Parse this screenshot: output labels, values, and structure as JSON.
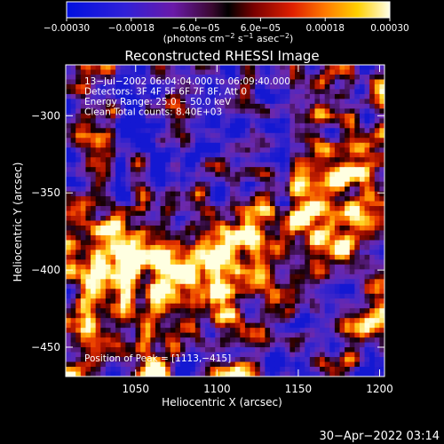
{
  "chart_data": {
    "type": "heatmap",
    "title": "Reconstructed RHESSI Image",
    "xlabel": "Heliocentric X (arcsec)",
    "ylabel": "Heliocentric Y (arcsec)",
    "xlim": [
      1007,
      1203
    ],
    "ylim": [
      -469,
      -267
    ],
    "x_ticks": [
      1050,
      1100,
      1150,
      1200
    ],
    "x_tick_labels": [
      "1050",
      "1100",
      "1150",
      "1200"
    ],
    "y_ticks": [
      -300,
      -350,
      -400,
      -450
    ],
    "y_tick_labels": [
      "−300",
      "−350",
      "−400",
      "−450"
    ],
    "colorbar": {
      "range": [
        -0.0003,
        0.0003
      ],
      "tick_labels": [
        "−0.00030",
        "−0.00018",
        "−6.0e−05",
        "6.0e−05",
        "0.00018",
        "0.00030"
      ],
      "unit_label": "(photons cm",
      "unit_sup1": "−2",
      "unit_mid": " s",
      "unit_sup2": "−1",
      "unit_end": " asec",
      "unit_sup3": "−2",
      "unit_close": ")"
    },
    "annotations": [
      "13−Jul−2002 06:04:04.000 to 06:09:40.000",
      "Detectors: 3F 4F 5F 6F 7F 8F, Att 0",
      "Energy Range: 25.0 − 50.0 keV",
      "Clean    Total counts: 8.40E+03"
    ],
    "peak_label": "Position of Peak = [1113,−415]",
    "peak_position": [
      1113,
      -415
    ],
    "grid": false
  },
  "footer": {
    "timestamp": "30−Apr−2022 03:14"
  },
  "colors": {
    "background": "#000000",
    "text": "#ffffff",
    "negative": "#1018d0",
    "positive": "#ffffc0"
  }
}
